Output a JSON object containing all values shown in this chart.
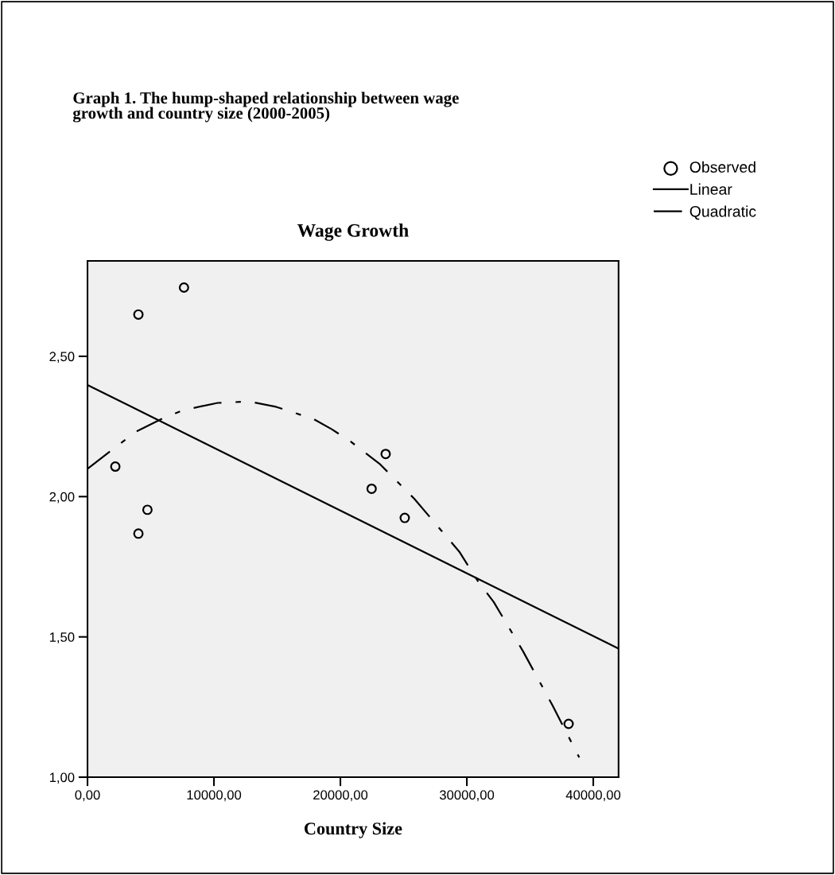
{
  "chart_data": {
    "type": "scatter",
    "title": "Wage Growth",
    "xlabel": "Country Size",
    "annotations": [
      "Graph 1. The hump-shaped relationship between wage\ngrowth and country size (2000-2005)"
    ],
    "series": [
      {
        "name": "Observed",
        "marker": "circle",
        "color": "#000000",
        "x": [
          2200,
          4025,
          7630,
          4025,
          4740,
          22470,
          23580,
          25090,
          38050
        ],
        "values": [
          2.107,
          2.649,
          2.745,
          1.868,
          1.953,
          2.028,
          2.152,
          1.924,
          1.19
        ]
      },
      {
        "name": "Linear",
        "type": "line",
        "line_style": "solid",
        "color": "#000000",
        "x": [
          0,
          42000
        ],
        "values": [
          2.398,
          1.458
        ]
      },
      {
        "name": "Quadratic",
        "type": "line",
        "line_style": "dashdot",
        "color": "#000000",
        "x": [
          0,
          1890,
          3780,
          5880,
          7560,
          10290,
          12800,
          14910,
          17850,
          19320,
          20790,
          23100,
          25830,
          29400,
          30870,
          32130,
          34440,
          36750,
          38890
        ],
        "values": [
          2.099,
          2.165,
          2.23,
          2.277,
          2.308,
          2.334,
          2.339,
          2.32,
          2.277,
          2.24,
          2.197,
          2.117,
          1.993,
          1.804,
          1.699,
          1.624,
          1.449,
          1.258,
          1.07
        ]
      }
    ],
    "xlim": [
      0,
      42000
    ],
    "ylim": [
      1.0,
      2.84
    ],
    "xticks": [
      {
        "value": 0,
        "label": "0,00"
      },
      {
        "value": 10000,
        "label": "10000,00"
      },
      {
        "value": 20000,
        "label": "20000,00"
      },
      {
        "value": 30000,
        "label": "30000,00"
      },
      {
        "value": 40000,
        "label": "40000,00"
      }
    ],
    "yticks": [
      {
        "value": 1.0,
        "label": "1,00"
      },
      {
        "value": 1.5,
        "label": "1,50"
      },
      {
        "value": 2.0,
        "label": "2,00"
      },
      {
        "value": 2.5,
        "label": "2,50"
      }
    ],
    "grid": false,
    "legend": "top right"
  }
}
